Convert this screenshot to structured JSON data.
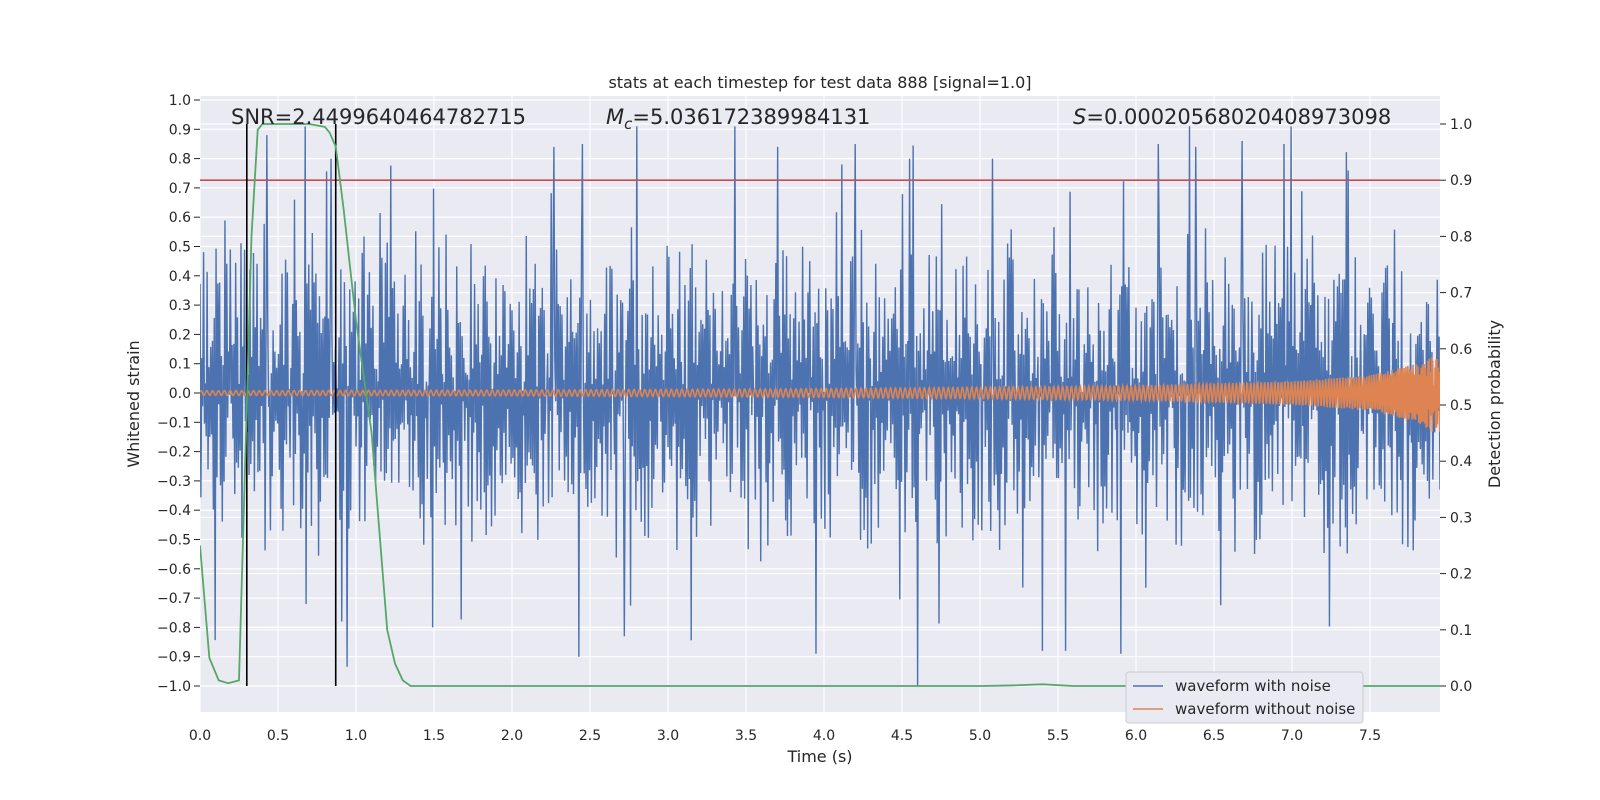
{
  "chart_data": {
    "type": "line",
    "title": "stats at each timestep for test data 888 [signal=1.0]",
    "xlabel": "Time (s)",
    "ylabel": "Whitened strain",
    "y2label": "Detection probability",
    "xlim": [
      0.0,
      8.0
    ],
    "ylim": [
      -1.1,
      1.02
    ],
    "y2lim": [
      -0.05,
      1.05
    ],
    "xticks": [
      "0.0",
      "0.5",
      "1.0",
      "1.5",
      "2.0",
      "2.5",
      "3.0",
      "3.5",
      "4.0",
      "4.5",
      "5.0",
      "5.5",
      "6.0",
      "6.5",
      "7.0",
      "7.5"
    ],
    "yticks": [
      "1.0",
      "0.9",
      "0.8",
      "0.7",
      "0.6",
      "0.5",
      "0.4",
      "0.3",
      "0.2",
      "0.1",
      "0.0",
      "−0.1",
      "−0.2",
      "−0.3",
      "−0.4",
      "−0.5",
      "−0.6",
      "−0.7",
      "−0.8",
      "−0.9",
      "−1.0"
    ],
    "y2ticks": [
      "1.0",
      "0.9",
      "0.8",
      "0.7",
      "0.6",
      "0.5",
      "0.4",
      "0.3",
      "0.2",
      "0.1",
      "0.0"
    ],
    "annotations": {
      "snr": "SNR=2.4499640464782715",
      "mc_symbol": "M",
      "mc_sub": "c",
      "mc_value": "=5.036172389984131",
      "s_symbol": "S",
      "s_value": "=0.00020568020408973098"
    },
    "threshold": {
      "axis": "y2",
      "value": 0.9,
      "color": "#c44e52"
    },
    "vertical_lines": [
      0.3,
      0.87
    ],
    "series": [
      {
        "name": "waveform with noise",
        "color": "#4c72b0",
        "axis": "y",
        "description": "dense noise band, typical amplitude about ±0.45 with spikes up to 0.91 and down to -1.0",
        "envelope_peaks": [
          [
            0.43,
            0.88
          ],
          [
            0.84,
            0.8
          ],
          [
            2.27,
            0.84
          ],
          [
            2.45,
            0.85
          ],
          [
            2.8,
            0.91
          ],
          [
            3.43,
            0.91
          ],
          [
            3.7,
            0.84
          ],
          [
            4.2,
            0.85
          ],
          [
            4.55,
            0.8
          ],
          [
            5.08,
            0.8
          ],
          [
            6.14,
            0.85
          ],
          [
            6.38,
            0.84
          ],
          [
            6.95,
            0.85
          ],
          [
            6.68,
            0.86
          ]
        ],
        "envelope_troughs": [
          [
            0.68,
            -0.72
          ],
          [
            0.91,
            -0.78
          ],
          [
            1.49,
            -0.8
          ],
          [
            2.43,
            -0.9
          ],
          [
            2.72,
            -0.83
          ],
          [
            3.95,
            -0.89
          ],
          [
            4.6,
            -1.0
          ],
          [
            5.4,
            -0.88
          ],
          [
            5.55,
            -0.88
          ],
          [
            5.9,
            -0.89
          ]
        ]
      },
      {
        "name": "waveform without noise",
        "color": "#dd8452",
        "axis": "y",
        "description": "chirp oscillation growing in amplitude toward merger near t=7.95",
        "amplitude_points": [
          [
            0.0,
            0.008
          ],
          [
            2.0,
            0.01
          ],
          [
            4.0,
            0.015
          ],
          [
            6.0,
            0.025
          ],
          [
            7.0,
            0.04
          ],
          [
            7.5,
            0.06
          ],
          [
            7.8,
            0.1
          ],
          [
            7.95,
            0.15
          ]
        ]
      },
      {
        "name": "Detection probability",
        "color": "#55a868",
        "axis": "y2",
        "x": [
          0.0,
          0.06,
          0.12,
          0.18,
          0.25,
          0.3,
          0.33,
          0.37,
          0.4,
          0.44,
          0.5,
          0.6,
          0.7,
          0.8,
          0.83,
          0.87,
          0.92,
          1.0,
          1.1,
          1.2,
          1.25,
          1.3,
          1.35,
          1.4,
          2.0,
          3.0,
          4.0,
          5.0,
          5.2,
          5.4,
          5.6,
          7.0,
          7.98
        ],
        "y": [
          0.25,
          0.05,
          0.01,
          0.005,
          0.01,
          0.5,
          0.8,
          0.99,
          1.0,
          1.0,
          1.0,
          1.0,
          1.0,
          0.995,
          0.985,
          0.96,
          0.85,
          0.65,
          0.45,
          0.1,
          0.04,
          0.01,
          0.0,
          0.0,
          0.0,
          0.0,
          0.0,
          0.0,
          0.001,
          0.003,
          0.0,
          0.0,
          0.0
        ]
      }
    ],
    "legend": {
      "placement": "lower-right",
      "entries": [
        {
          "label": "waveform with noise",
          "color": "#4c72b0"
        },
        {
          "label": "waveform without noise",
          "color": "#dd8452"
        }
      ]
    }
  }
}
